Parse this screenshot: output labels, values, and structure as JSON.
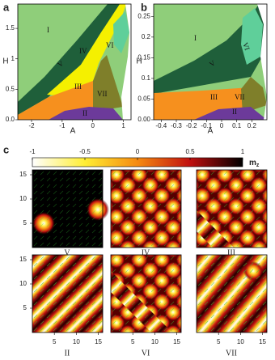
{
  "figure": {
    "panel_labels": [
      "a",
      "b",
      "c"
    ],
    "phase_a": {
      "xlabel": "A",
      "ylabel": "H",
      "xlim": [
        -2.45,
        1.25
      ],
      "ylim": [
        0,
        1.9
      ],
      "xticks": [
        -2,
        -1,
        0,
        1
      ],
      "yticks": [
        {
          "value": 0,
          "label": "0.0"
        },
        0.5,
        1,
        1.5
      ],
      "regions": [
        "I",
        "II",
        "III",
        "IV",
        "V",
        "VI",
        "VII"
      ]
    },
    "phase_b": {
      "xlabel": "A",
      "ylabel": "H",
      "xlim": [
        -0.45,
        0.3
      ],
      "ylim": [
        0,
        0.28
      ],
      "xticks": [
        -0.4,
        -0.3,
        -0.2,
        -0.1,
        0,
        0.1,
        0.2
      ],
      "yticks": [
        {
          "value": 0,
          "label": "0.00"
        },
        0.05,
        0.1,
        0.15,
        0.2,
        0.25
      ],
      "regions": [
        "I",
        "II",
        "III",
        "V",
        "VI",
        "VII"
      ]
    },
    "colorbar": {
      "lim": [
        -1,
        1
      ],
      "ticks": [
        -1,
        -0.5,
        0,
        0.5,
        1
      ],
      "label": "m",
      "subscript": "z"
    },
    "snapshots": {
      "lim": [
        0,
        16
      ],
      "xticks": [
        5,
        10,
        15
      ],
      "yticks": [
        5,
        10,
        15
      ],
      "labels": [
        "V",
        "IV",
        "III",
        "II",
        "VI",
        "VII"
      ]
    }
  }
}
